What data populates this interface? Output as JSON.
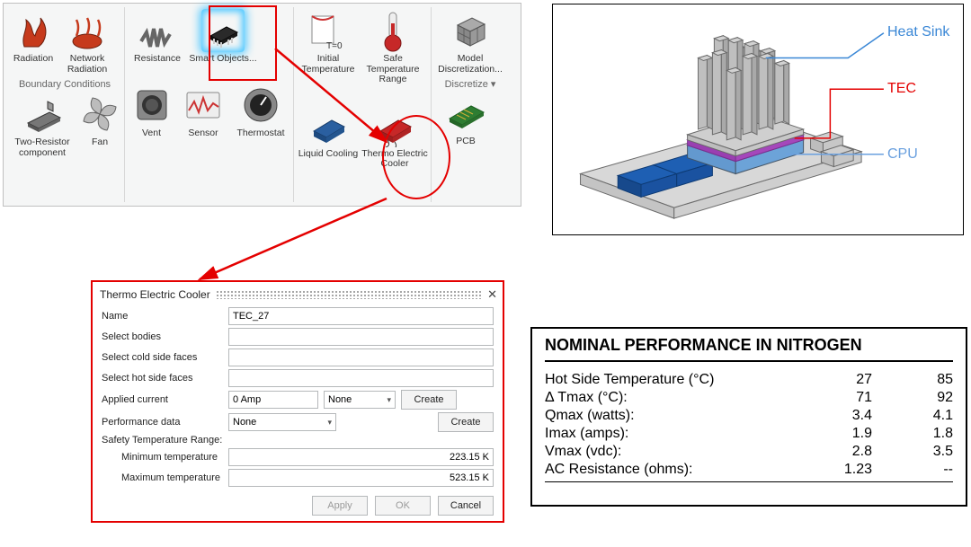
{
  "ribbon": {
    "groups": {
      "boundary_conditions_title": "Boundary Conditions",
      "discretize_title": "Discretize ▾"
    },
    "row1": {
      "radiation": "Radiation",
      "network_radiation": "Network Radiation",
      "resistance": "Resistance",
      "smart_objects": "Smart Objects...",
      "initial_temperature": "Initial Temperature",
      "safe_temp_range": "Safe Temperature Range",
      "model_discretization": "Model Discretization..."
    },
    "row2": {
      "two_resistor": "Two-Resistor component",
      "fan": "Fan",
      "vent": "Vent",
      "sensor": "Sensor",
      "thermostat": "Thermostat",
      "liquid_cooling": "Liquid Cooling",
      "thermo_electric_cooler": "Thermo Electric Cooler",
      "pcb": "PCB"
    },
    "colors": {
      "ribbon_bg": "#f5f6f6",
      "ribbon_border": "#c0c0c0",
      "glow": "#4fc8ff",
      "highlight_red": "#e40000"
    }
  },
  "dialog": {
    "title": "Thermo Electric Cooler",
    "fields": {
      "name_label": "Name",
      "name_value": "TEC_27",
      "select_bodies_label": "Select bodies",
      "select_cold_label": "Select cold side faces",
      "select_hot_label": "Select hot side faces",
      "applied_current_label": "Applied current",
      "applied_current_value": "0 Amp",
      "applied_current_units": "None",
      "create_label": "Create",
      "perf_data_label": "Performance data",
      "perf_data_value": "None",
      "safety_range_label": "Safety Temperature Range:",
      "min_temp_label": "Minimum temperature",
      "min_temp_value": "223.15 K",
      "max_temp_label": "Maximum temperature",
      "max_temp_value": "523.15 K"
    },
    "buttons": {
      "apply": "Apply",
      "ok": "OK",
      "cancel": "Cancel"
    }
  },
  "illustration": {
    "callouts": {
      "heat_sink": "Heat Sink",
      "tec": "TEC",
      "cpu": "CPU"
    },
    "colors": {
      "heat_sink": "#3a87d6",
      "tec": "#e40000",
      "cpu": "#6aa0df",
      "pcb_fill": "#d8d8d8",
      "pcb_line": "#6b6b6b",
      "chip_blue": "#1e5fb3",
      "heatsink_fill": "#bfbfbf",
      "tec_purple": "#b050c8",
      "cpu_block": "#7aaee0"
    }
  },
  "performance": {
    "title": "NOMINAL PERFORMANCE IN NITROGEN",
    "rows": [
      {
        "param": "Hot Side Temperature (°C)",
        "v1": "27",
        "v2": "85"
      },
      {
        "param": "Δ Tmax (°C):",
        "v1": "71",
        "v2": "92"
      },
      {
        "param": "Qmax (watts):",
        "v1": "3.4",
        "v2": "4.1"
      },
      {
        "param": "Imax (amps):",
        "v1": "1.9",
        "v2": "1.8"
      },
      {
        "param": "Vmax (vdc):",
        "v1": "2.8",
        "v2": "3.5"
      },
      {
        "param": "AC Resistance (ohms):",
        "v1": "1.23",
        "v2": "--"
      }
    ],
    "styling": {
      "title_fontsize": 18,
      "row_fontsize": 16,
      "col_widths": {
        "param": "flex",
        "v1": 90,
        "v2": 90
      }
    }
  }
}
